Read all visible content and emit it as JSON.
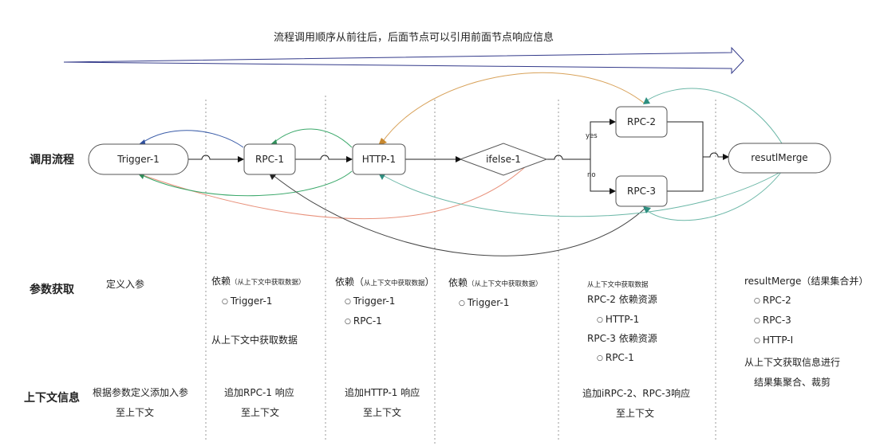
{
  "top_note": "流程调用顺序从前往后，后面节点可以引用前面节点响应信息",
  "row_labels": {
    "flow": "调用流程",
    "params": "参数获取",
    "context": "上下文信息"
  },
  "nodes": {
    "trigger": "Trigger-1",
    "rpc1": "RPC-1",
    "http1": "HTTP-1",
    "ifelse": "ifelse-1",
    "rpc2": "RPC-2",
    "rpc3": "RPC-3",
    "merge": "resutlMerge"
  },
  "branch_labels": {
    "yes": "yes",
    "no": "no"
  },
  "params": {
    "col1": {
      "text": "定义入参"
    },
    "col2": {
      "head": "依赖",
      "head_small": "（从上下文中获取数据）",
      "items": [
        "Trigger-1"
      ],
      "note": "从上下文中获取数据"
    },
    "col3": {
      "head": "依赖（",
      "head_small": "从上下文中获取数据",
      "head_close": "）",
      "items": [
        "Trigger-1",
        "RPC-1"
      ]
    },
    "col4": {
      "head": "依赖",
      "head_small": "（从上下文中获取数据）",
      "items": [
        "Trigger-1"
      ]
    },
    "col5": {
      "head_small": "从上下文中获取数据",
      "line1": "RPC-2 依赖资源",
      "item1": "HTTP-1",
      "line2": "RPC-3 依赖资源",
      "item2": "RPC-1"
    },
    "col6": {
      "head": "resultMerge（结果集合并）",
      "items": [
        "RPC-2",
        "RPC-3",
        "HTTP-I"
      ],
      "note1": "从上下文获取信息进行",
      "note2": "结果集聚合、裁剪"
    }
  },
  "context": {
    "col1": [
      "根据参数定义添加入参",
      "至上下文"
    ],
    "col2": [
      "追加RPC-1 响应",
      "至上下文"
    ],
    "col3": [
      "追加HTTP-1 响应",
      "至上下文"
    ],
    "col5": [
      "追加iRPC-2、RPC-3响应",
      "至上下文"
    ]
  }
}
